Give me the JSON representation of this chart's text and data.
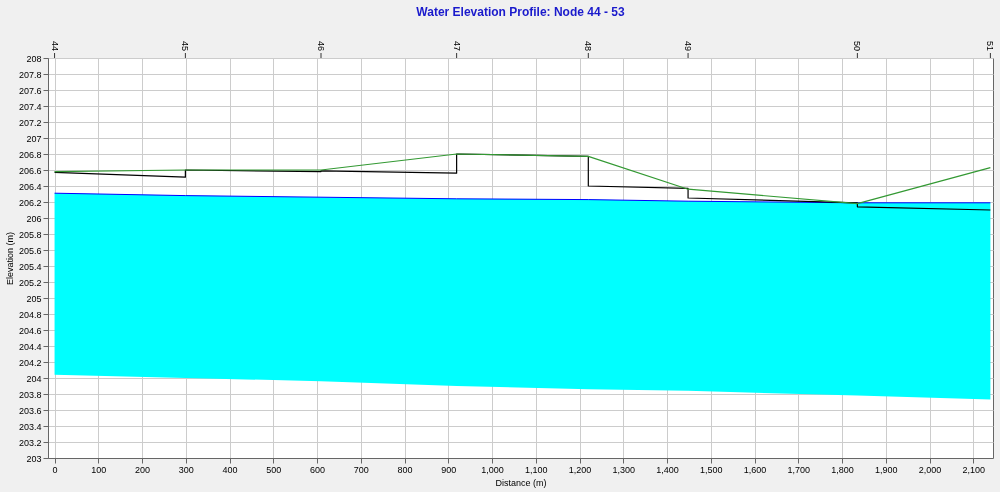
{
  "chart_data": {
    "type": "line",
    "title": "Water Elevation Profile: Node 44 - 53",
    "xlabel": "Distance (m)",
    "ylabel": "Elevation (m)",
    "xlim": [
      -15,
      2145
    ],
    "ylim": [
      203,
      208
    ],
    "xticks": [
      0,
      100,
      200,
      300,
      400,
      500,
      600,
      700,
      800,
      900,
      {
        "value": 1000,
        "label": "1,000"
      },
      {
        "value": 1100,
        "label": "1,100"
      },
      {
        "value": 1200,
        "label": "1,200"
      },
      {
        "value": 1300,
        "label": "1,300"
      },
      {
        "value": 1400,
        "label": "1,400"
      },
      {
        "value": 1500,
        "label": "1,500"
      },
      {
        "value": 1600,
        "label": "1,600"
      },
      {
        "value": 1700,
        "label": "1,700"
      },
      {
        "value": 1800,
        "label": "1,800"
      },
      {
        "value": 1900,
        "label": "1,900"
      },
      {
        "value": 2000,
        "label": "2,000"
      },
      {
        "value": 2100,
        "label": "2,100"
      }
    ],
    "yticks": [
      203,
      203.2,
      203.4,
      203.6,
      203.8,
      204,
      204.2,
      204.4,
      204.6,
      204.8,
      205,
      205.2,
      205.4,
      205.6,
      205.8,
      206,
      206.2,
      206.4,
      206.6,
      206.8,
      207,
      207.2,
      207.4,
      207.6,
      207.8,
      208
    ],
    "grid": true,
    "annotations": [
      "44",
      "45",
      "46",
      "47",
      "48",
      "49",
      "50",
      "51"
    ],
    "series": [
      {
        "color": "#0000ff",
        "x": [
          0,
          299,
          609,
          919,
          1220,
          1448,
          1835,
          2139
        ],
        "values": [
          206.31,
          206.28,
          206.26,
          206.24,
          206.23,
          206.21,
          206.19,
          206.19
        ],
        "lower": [
          204.04,
          204.0,
          203.96,
          203.9,
          203.86,
          203.84,
          203.78,
          203.73
        ],
        "upper": [
          206.31,
          206.28,
          206.26,
          206.24,
          206.23,
          206.21,
          206.19,
          206.19
        ]
      },
      {
        "color": "#000000",
        "x": [
          0,
          299,
          299,
          609,
          609,
          919,
          919,
          1220,
          1220,
          1448,
          1448,
          1835,
          1835,
          2139
        ],
        "values": [
          206.57,
          206.51,
          206.6,
          206.58,
          206.59,
          206.56,
          206.8,
          206.77,
          206.4,
          206.37,
          206.25,
          206.19,
          206.14,
          206.1
        ]
      },
      {
        "color": "#339933",
        "x": [
          0,
          299,
          609,
          919,
          1220,
          1448,
          1835,
          2139
        ],
        "values": [
          206.58,
          206.6,
          206.6,
          206.8,
          206.77,
          206.36,
          206.18,
          206.63
        ]
      }
    ]
  }
}
